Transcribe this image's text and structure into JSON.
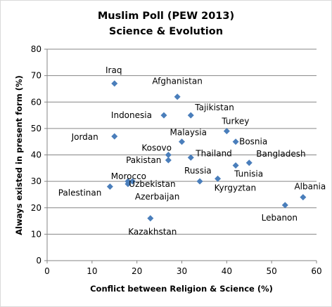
{
  "chart_data": {
    "type": "scatter",
    "title": "Muslim Poll (PEW 2013)",
    "subtitle": "Science & Evolution",
    "xlabel": "Conflict between Religion & Science  (%)",
    "ylabel": "Always existed in present form (%)",
    "xlim": [
      0,
      60
    ],
    "ylim": [
      0,
      80
    ],
    "xticks": [
      "0",
      "10",
      "20",
      "30",
      "40",
      "50",
      "60"
    ],
    "yticks": [
      "0",
      "10",
      "20",
      "30",
      "40",
      "50",
      "60",
      "70",
      "80"
    ],
    "grid": "horizontal",
    "legend": "none",
    "marker_color": "#4a7ebb",
    "points": [
      {
        "label": "Iraq",
        "x": 15,
        "y": 67
      },
      {
        "label": "Afghanistan",
        "x": 29,
        "y": 62
      },
      {
        "label": "Indonesia",
        "x": 26,
        "y": 55
      },
      {
        "label": "Tajikistan",
        "x": 32,
        "y": 55
      },
      {
        "label": "Jordan",
        "x": 15,
        "y": 47
      },
      {
        "label": "Turkey",
        "x": 40,
        "y": 49
      },
      {
        "label": "Malaysia",
        "x": 30,
        "y": 45
      },
      {
        "label": "Bosnia",
        "x": 42,
        "y": 45
      },
      {
        "label": "Kosovo",
        "x": 27,
        "y": 40
      },
      {
        "label": "Thailand",
        "x": 32,
        "y": 39
      },
      {
        "label": "Pakistan",
        "x": 27,
        "y": 38
      },
      {
        "label": "Bangladesh",
        "x": 45,
        "y": 37
      },
      {
        "label": "Tunisia",
        "x": 42,
        "y": 36
      },
      {
        "label": "Russia",
        "x": 34,
        "y": 30
      },
      {
        "label": "Kyrgyztan",
        "x": 38,
        "y": 31
      },
      {
        "label": "Morocco",
        "x": 18,
        "y": 30
      },
      {
        "label": "Uzbekistan",
        "x": 19,
        "y": 30
      },
      {
        "label": "Azerbaijan",
        "x": 18,
        "y": 29
      },
      {
        "label": "Palestinan",
        "x": 14,
        "y": 28
      },
      {
        "label": "Albania",
        "x": 57,
        "y": 24
      },
      {
        "label": "Lebanon",
        "x": 53,
        "y": 21
      },
      {
        "label": "Kazakhstan",
        "x": 23,
        "y": 16
      }
    ]
  }
}
